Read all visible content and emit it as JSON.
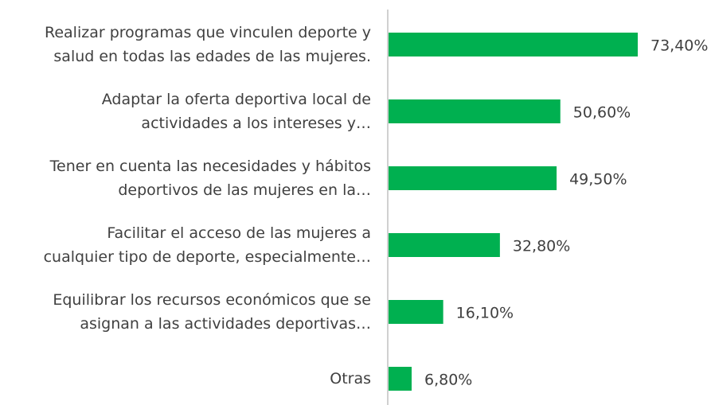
{
  "chart_data": {
    "type": "bar",
    "orientation": "horizontal",
    "categories": [
      "Realizar programas que vinculen deporte y\nsalud en todas las edades de las mujeres.",
      "Adaptar la oferta deportiva local de\nactividades a los intereses y…",
      "Tener en cuenta las necesidades y hábitos\ndeportivos de las mujeres en la…",
      "Facilitar el acceso de las mujeres a\ncualquier tipo de deporte, especialmente…",
      "Equilibrar los recursos económicos que se\nasignan a las actividades deportivas…",
      "Otras"
    ],
    "values": [
      73.4,
      50.6,
      49.5,
      32.8,
      16.1,
      6.8
    ],
    "value_labels": [
      "73,40%",
      "50,60%",
      "49,50%",
      "32,80%",
      "16,10%",
      "6,80%"
    ],
    "color": "#00b050"
  }
}
